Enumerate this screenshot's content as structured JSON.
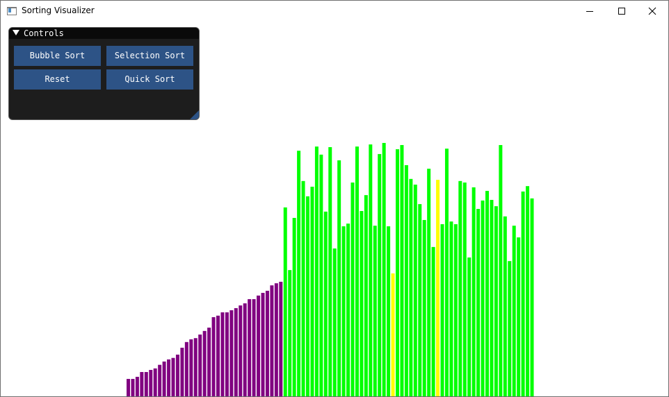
{
  "window": {
    "title": "Sorting Visualizer",
    "icon": "app-window-icon",
    "controls": [
      "minimize-icon",
      "maximize-icon",
      "close-icon"
    ]
  },
  "panel": {
    "title": "Controls",
    "buttons": {
      "bubble": "Bubble Sort",
      "selection": "Selection Sort",
      "reset": "Reset",
      "quick": "Quick Sort"
    },
    "colors": {
      "background": "#1d1d1d",
      "header": "#0a0a0a",
      "button": "#2d5386"
    }
  },
  "colors": {
    "sorted": "#800080",
    "unsorted": "#00ff00",
    "active": "#ffff00"
  },
  "visualization": {
    "max_value": 100,
    "bars": [
      {
        "value": 5.8,
        "state": "sorted"
      },
      {
        "value": 5.8,
        "state": "sorted"
      },
      {
        "value": 6.5,
        "state": "sorted"
      },
      {
        "value": 8.1,
        "state": "sorted"
      },
      {
        "value": 8.1,
        "state": "sorted"
      },
      {
        "value": 8.8,
        "state": "sorted"
      },
      {
        "value": 9.3,
        "state": "sorted"
      },
      {
        "value": 10.5,
        "state": "sorted"
      },
      {
        "value": 11.6,
        "state": "sorted"
      },
      {
        "value": 12.3,
        "state": "sorted"
      },
      {
        "value": 12.8,
        "state": "sorted"
      },
      {
        "value": 13.9,
        "state": "sorted"
      },
      {
        "value": 16.2,
        "state": "sorted"
      },
      {
        "value": 18.1,
        "state": "sorted"
      },
      {
        "value": 19.0,
        "state": "sorted"
      },
      {
        "value": 19.4,
        "state": "sorted"
      },
      {
        "value": 20.6,
        "state": "sorted"
      },
      {
        "value": 21.8,
        "state": "sorted"
      },
      {
        "value": 22.9,
        "state": "sorted"
      },
      {
        "value": 26.4,
        "state": "sorted"
      },
      {
        "value": 26.9,
        "state": "sorted"
      },
      {
        "value": 28.0,
        "state": "sorted"
      },
      {
        "value": 28.0,
        "state": "sorted"
      },
      {
        "value": 28.7,
        "state": "sorted"
      },
      {
        "value": 29.4,
        "state": "sorted"
      },
      {
        "value": 30.3,
        "state": "sorted"
      },
      {
        "value": 31.0,
        "state": "sorted"
      },
      {
        "value": 32.4,
        "state": "sorted"
      },
      {
        "value": 32.4,
        "state": "sorted"
      },
      {
        "value": 33.6,
        "state": "sorted"
      },
      {
        "value": 34.5,
        "state": "sorted"
      },
      {
        "value": 35.2,
        "state": "sorted"
      },
      {
        "value": 37.0,
        "state": "sorted"
      },
      {
        "value": 37.7,
        "state": "sorted"
      },
      {
        "value": 38.2,
        "state": "sorted"
      },
      {
        "value": 63.0,
        "state": "unsorted"
      },
      {
        "value": 42.1,
        "state": "unsorted"
      },
      {
        "value": 59.5,
        "state": "unsorted"
      },
      {
        "value": 81.9,
        "state": "unsorted"
      },
      {
        "value": 71.8,
        "state": "unsorted"
      },
      {
        "value": 66.7,
        "state": "unsorted"
      },
      {
        "value": 69.9,
        "state": "unsorted"
      },
      {
        "value": 83.3,
        "state": "unsorted"
      },
      {
        "value": 80.6,
        "state": "unsorted"
      },
      {
        "value": 61.6,
        "state": "unsorted"
      },
      {
        "value": 83.1,
        "state": "unsorted"
      },
      {
        "value": 49.3,
        "state": "unsorted"
      },
      {
        "value": 78.7,
        "state": "unsorted"
      },
      {
        "value": 56.7,
        "state": "unsorted"
      },
      {
        "value": 57.6,
        "state": "unsorted"
      },
      {
        "value": 71.3,
        "state": "unsorted"
      },
      {
        "value": 83.3,
        "state": "unsorted"
      },
      {
        "value": 61.8,
        "state": "unsorted"
      },
      {
        "value": 67.1,
        "state": "unsorted"
      },
      {
        "value": 84.0,
        "state": "unsorted"
      },
      {
        "value": 56.9,
        "state": "unsorted"
      },
      {
        "value": 80.8,
        "state": "unsorted"
      },
      {
        "value": 84.5,
        "state": "unsorted"
      },
      {
        "value": 56.7,
        "state": "unsorted"
      },
      {
        "value": 41.0,
        "state": "active"
      },
      {
        "value": 82.4,
        "state": "unsorted"
      },
      {
        "value": 83.8,
        "state": "unsorted"
      },
      {
        "value": 77.1,
        "state": "unsorted"
      },
      {
        "value": 72.5,
        "state": "unsorted"
      },
      {
        "value": 70.6,
        "state": "unsorted"
      },
      {
        "value": 64.1,
        "state": "unsorted"
      },
      {
        "value": 58.8,
        "state": "unsorted"
      },
      {
        "value": 75.9,
        "state": "unsorted"
      },
      {
        "value": 49.8,
        "state": "unsorted"
      },
      {
        "value": 72.2,
        "state": "active"
      },
      {
        "value": 57.4,
        "state": "unsorted"
      },
      {
        "value": 82.6,
        "state": "unsorted"
      },
      {
        "value": 58.3,
        "state": "unsorted"
      },
      {
        "value": 57.4,
        "state": "unsorted"
      },
      {
        "value": 71.8,
        "state": "unsorted"
      },
      {
        "value": 71.3,
        "state": "unsorted"
      },
      {
        "value": 46.3,
        "state": "unsorted"
      },
      {
        "value": 69.7,
        "state": "unsorted"
      },
      {
        "value": 62.5,
        "state": "unsorted"
      },
      {
        "value": 65.3,
        "state": "unsorted"
      },
      {
        "value": 68.5,
        "state": "unsorted"
      },
      {
        "value": 65.5,
        "state": "unsorted"
      },
      {
        "value": 63.4,
        "state": "unsorted"
      },
      {
        "value": 83.8,
        "state": "unsorted"
      },
      {
        "value": 60.0,
        "state": "unsorted"
      },
      {
        "value": 45.1,
        "state": "unsorted"
      },
      {
        "value": 56.9,
        "state": "unsorted"
      },
      {
        "value": 53.0,
        "state": "unsorted"
      },
      {
        "value": 68.3,
        "state": "unsorted"
      },
      {
        "value": 70.1,
        "state": "unsorted"
      },
      {
        "value": 66.0,
        "state": "unsorted"
      }
    ]
  }
}
